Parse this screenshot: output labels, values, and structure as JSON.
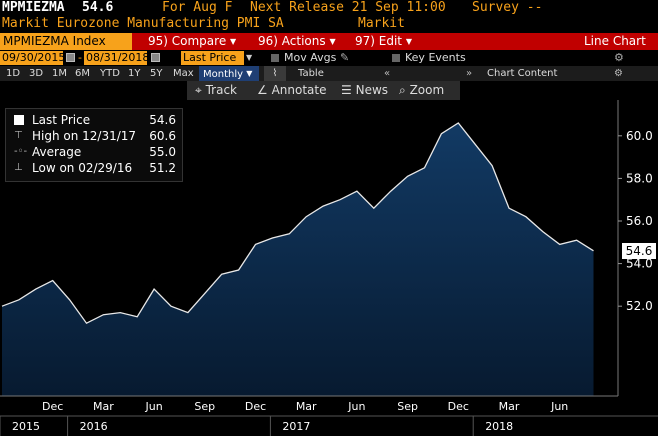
{
  "header": {
    "ticker": "MPMIEZMA",
    "last_price": "54.6",
    "for_label": "For Aug F",
    "next_release": "Next Release 21 Sep 11:00",
    "survey": "Survey --",
    "description": "Markit Eurozone Manufacturing PMI SA",
    "source": "Markit"
  },
  "toolbar_red": {
    "ticker_field": "MPMIEZMA Index",
    "compare": "95) Compare",
    "actions": "96) Actions",
    "edit": "97) Edit",
    "title": "Line Chart"
  },
  "date_row": {
    "start_date": "09/30/2015",
    "end_date": "08/31/2018",
    "field": "Last Price",
    "mov_avgs": "Mov Avgs",
    "key_events": "Key Events"
  },
  "period_row": {
    "periods": [
      "1D",
      "3D",
      "1M",
      "6M",
      "YTD",
      "1Y",
      "5Y",
      "Max"
    ],
    "frequency": "Monthly",
    "table": "Table",
    "chart_content": "Chart Content"
  },
  "tools": {
    "track": "Track",
    "annotate": "Annotate",
    "news": "News",
    "zoom": "Zoom"
  },
  "legend": {
    "last_price_label": "Last Price",
    "last_price_value": "54.6",
    "high_label": "High on 12/31/17",
    "high_value": "60.6",
    "average_label": "Average",
    "average_value": "55.0",
    "low_label": "Low on 02/29/16",
    "low_value": "51.2"
  },
  "last_value_box": "54.6",
  "colors": {
    "accent_amber": "#f7a21b",
    "bar_red": "#c00000",
    "area_fill": "#0c2a4a",
    "line": "#ffffff",
    "selected": "#1f3f74"
  },
  "chart_data": {
    "type": "area",
    "x": [
      "2015-09",
      "2015-10",
      "2015-11",
      "2015-12",
      "2016-01",
      "2016-02",
      "2016-03",
      "2016-04",
      "2016-05",
      "2016-06",
      "2016-07",
      "2016-08",
      "2016-09",
      "2016-10",
      "2016-11",
      "2016-12",
      "2017-01",
      "2017-02",
      "2017-03",
      "2017-04",
      "2017-05",
      "2017-06",
      "2017-07",
      "2017-08",
      "2017-09",
      "2017-10",
      "2017-11",
      "2017-12",
      "2018-01",
      "2018-02",
      "2018-03",
      "2018-04",
      "2018-05",
      "2018-06",
      "2018-07",
      "2018-08"
    ],
    "values": [
      52.0,
      52.3,
      52.8,
      53.2,
      52.3,
      51.2,
      51.6,
      51.7,
      51.5,
      52.8,
      52.0,
      51.7,
      52.6,
      53.5,
      53.7,
      54.9,
      55.2,
      55.4,
      56.2,
      56.7,
      57.0,
      57.4,
      56.6,
      57.4,
      58.1,
      58.5,
      60.1,
      60.6,
      59.6,
      58.6,
      56.6,
      56.2,
      55.5,
      54.9,
      55.1,
      54.6
    ],
    "ylim": [
      50.6,
      61.4
    ],
    "yticks": [
      "52.0",
      "54.0",
      "56.0",
      "58.0",
      "60.0"
    ],
    "ytick_values": [
      52,
      54,
      56,
      58,
      60
    ],
    "month_labels": [
      "Dec",
      "Mar",
      "Jun",
      "Sep",
      "Dec",
      "Mar",
      "Jun",
      "Sep",
      "Dec",
      "Mar",
      "Jun"
    ],
    "month_label_index": [
      3,
      6,
      9,
      12,
      15,
      18,
      21,
      24,
      27,
      30,
      33
    ],
    "year_labels": [
      "2015",
      "2016",
      "2017",
      "2018"
    ],
    "year_label_index": [
      0,
      4,
      16,
      28
    ],
    "grid": false
  }
}
